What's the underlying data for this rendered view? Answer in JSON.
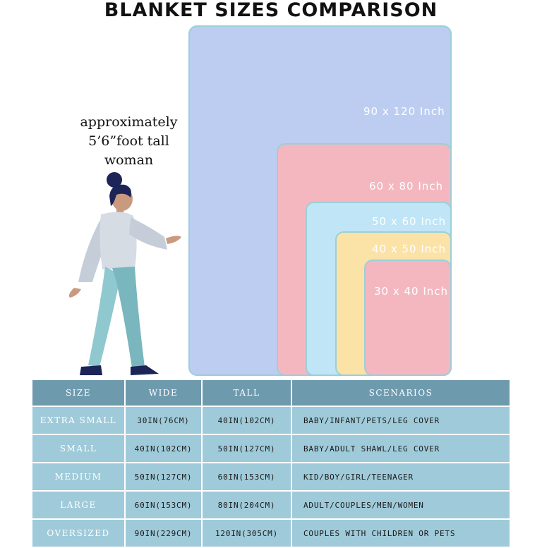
{
  "title": "BLANKET SIZES COMPARISON",
  "caption": [
    "approximately",
    "5’6”foot tall",
    "woman"
  ],
  "blankets": [
    {
      "label": "90 x 120 Inch",
      "color": "#bccdf1"
    },
    {
      "label": "60 x 80 Inch",
      "color": "#f4b7c0"
    },
    {
      "label": "50 x 60 Inch",
      "color": "#bfe5f6"
    },
    {
      "label": "40 x 50 Inch",
      "color": "#fbe2a7"
    },
    {
      "label": "30 x 40 Inch",
      "color": "#f4b7c0"
    }
  ],
  "colors": {
    "blanket_border": "#9ccfd8",
    "table_header": "#6e9aae",
    "table_row": "#9fcad9"
  },
  "table": {
    "headers": [
      "SIZE",
      "WIDE",
      "TALL",
      "SCENARIOS"
    ],
    "rows": [
      {
        "size": "EXTRA SMALL",
        "wide": "30IN(76CM)",
        "tall": "40IN(102CM)",
        "scenario": "BABY/INFANT/PETS/LEG COVER"
      },
      {
        "size": "SMALL",
        "wide": "40IN(102CM)",
        "tall": "50IN(127CM)",
        "scenario": "BABY/ADULT SHAWL/LEG COVER"
      },
      {
        "size": "MEDIUM",
        "wide": "50IN(127CM)",
        "tall": "60IN(153CM)",
        "scenario": "KID/BOY/GIRL/TEENAGER"
      },
      {
        "size": "LARGE",
        "wide": "60IN(153CM)",
        "tall": "80IN(204CM)",
        "scenario": "ADULT/COUPLES/MEN/WOMEN"
      },
      {
        "size": "OVERSIZED",
        "wide": "90IN(229CM)",
        "tall": "120IN(305CM)",
        "scenario": "COUPLES WITH CHILDREN OR PETS"
      }
    ]
  }
}
